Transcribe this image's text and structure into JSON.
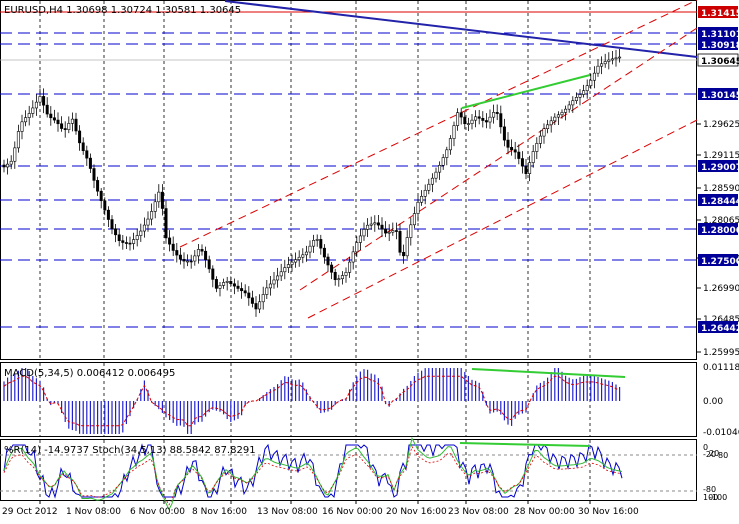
{
  "header": {
    "symbol_info": "EURUSD,H4  1.30698 1.30724 1.30581 1.30645"
  },
  "price_panel": {
    "axis_labels": [
      "1.29625",
      "1.29115",
      "1.28590",
      "1.28065",
      "1.27500",
      "1.26990",
      "1.26485",
      "1.25995"
    ],
    "levels": [
      {
        "label": "1.31415",
        "style": "box-red"
      },
      {
        "label": "1.31101",
        "style": "box-blue"
      },
      {
        "label": "1.30918",
        "style": "box-blue"
      },
      {
        "label": "1.30645",
        "style": "box-current"
      },
      {
        "label": "1.30145",
        "style": "box-blue"
      },
      {
        "label": "1.29007",
        "style": "box-blue"
      },
      {
        "label": "1.28444",
        "style": "box-blue"
      },
      {
        "label": "1.28006",
        "style": "box-blue"
      },
      {
        "label": "1.27500",
        "style": "box-blue"
      },
      {
        "label": "1.26442",
        "style": "box-blue"
      }
    ]
  },
  "macd_panel": {
    "title": "MACD(5,34,5) 0.006412 0.006495",
    "axis_labels": [
      "0.011188",
      "0.00",
      "-0.01046"
    ]
  },
  "stoch_panel": {
    "title": "%R(14) -14.9737  Stoch(34,5,13) 88.5842 87.8291",
    "axis_labels": [
      "0",
      "-20",
      "20",
      "80",
      "-80",
      "100",
      "-100"
    ]
  },
  "time_axis": {
    "labels": [
      "29 Oct 2012",
      "1 Nov 08:00",
      "6 Nov 00:00",
      "8 Nov 16:00",
      "13 Nov 08:00",
      "16 Nov 00:00",
      "20 Nov 16:00",
      "23 Nov 08:00",
      "28 Nov 00:00",
      "30 Nov 16:00"
    ]
  },
  "colors": {
    "background": "#ffffff",
    "grid": "#8c8c8c",
    "candle": "#000000",
    "level_line": "#0000cc",
    "trend_line": "#2222aa",
    "channel": "#dd0000",
    "green_trend": "#33cc33",
    "macd_hist": "#2222cc",
    "signal": "#dd0000",
    "stoch_main": "#0000cc",
    "stoch_signal": "#33bb33",
    "level_box_red": "#cc0000",
    "level_box_blue": "#000099",
    "current_box": "#ffffff"
  }
}
